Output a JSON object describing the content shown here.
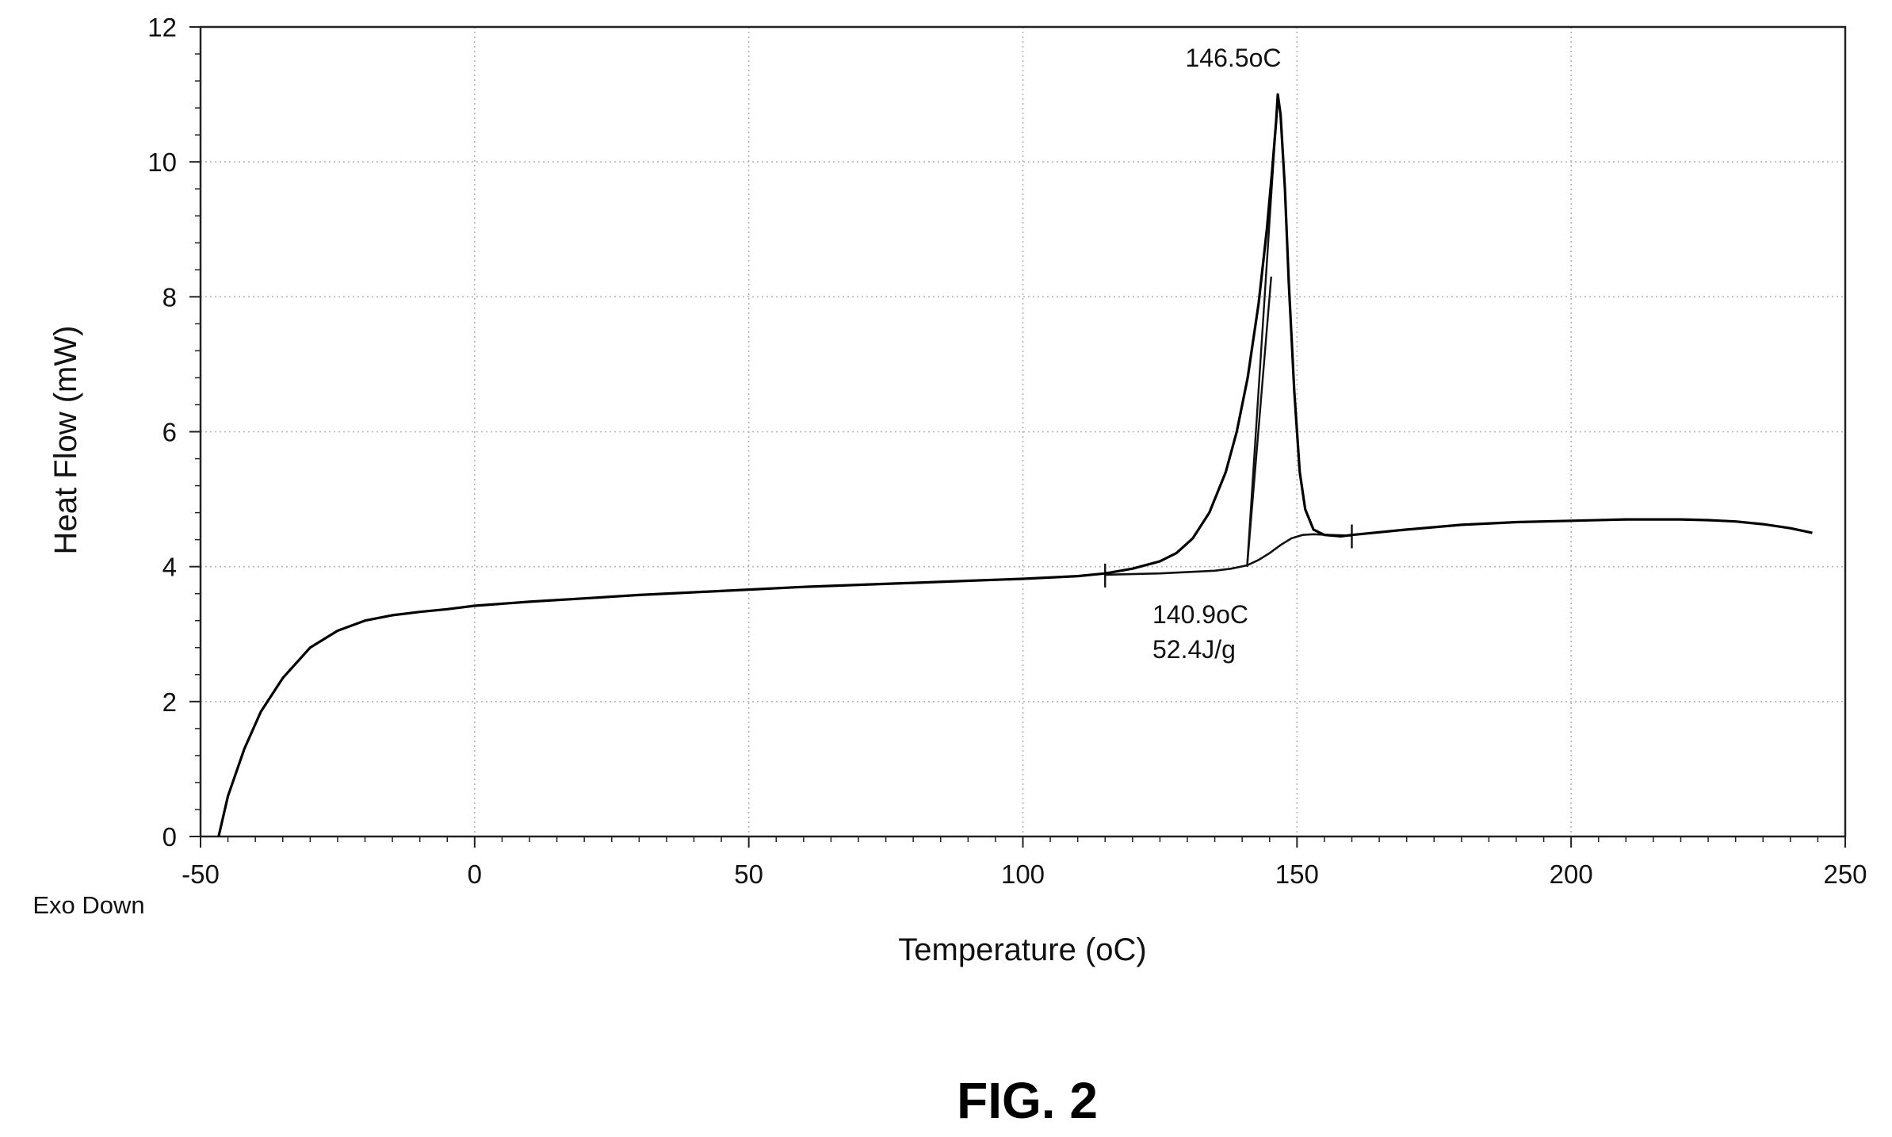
{
  "chart_data": {
    "type": "line",
    "title": "",
    "xlabel": "Temperature (oC)",
    "ylabel": "Heat Flow (mW)",
    "xlim": [
      -50,
      250
    ],
    "ylim": [
      0,
      12
    ],
    "x_ticks": [
      "-50",
      "0",
      "50",
      "100",
      "150",
      "200",
      "250"
    ],
    "y_ticks": [
      "0",
      "2",
      "4",
      "6",
      "8",
      "10",
      "12"
    ],
    "grid": true,
    "legend": "none",
    "corner_label": "Exo Down",
    "figure_label": "FIG. 2",
    "series": [
      {
        "x": [
          -46.7,
          -45,
          -42,
          -39,
          -35,
          -30,
          -25,
          -20,
          -15,
          -10,
          -5,
          0,
          10,
          20,
          30,
          40,
          50,
          60,
          70,
          80,
          90,
          100,
          110,
          115,
          120,
          125,
          128,
          131,
          134,
          137,
          139,
          141,
          143,
          144.5,
          145.5,
          146.2,
          146.5,
          147,
          147.8,
          148.5,
          149.5,
          150.5,
          151.5,
          153,
          155,
          158,
          160,
          170,
          180,
          190,
          200,
          210,
          220,
          225,
          230,
          235,
          240,
          244
        ],
        "y": [
          0,
          0.6,
          1.3,
          1.85,
          2.35,
          2.8,
          3.05,
          3.2,
          3.28,
          3.33,
          3.37,
          3.42,
          3.48,
          3.53,
          3.58,
          3.62,
          3.66,
          3.7,
          3.73,
          3.76,
          3.79,
          3.82,
          3.86,
          3.9,
          3.97,
          4.08,
          4.2,
          4.42,
          4.8,
          5.4,
          6.0,
          6.8,
          7.9,
          9.0,
          9.9,
          10.6,
          11.0,
          10.7,
          9.6,
          8.2,
          6.6,
          5.4,
          4.85,
          4.55,
          4.47,
          4.45,
          4.47,
          4.55,
          4.62,
          4.66,
          4.68,
          4.7,
          4.7,
          4.69,
          4.67,
          4.63,
          4.57,
          4.5
        ]
      }
    ],
    "baseline": {
      "x": [
        115,
        125,
        135,
        138,
        140.9,
        143,
        145,
        147,
        149,
        151,
        153,
        156,
        160
      ],
      "y": [
        3.88,
        3.9,
        3.94,
        3.97,
        4.02,
        4.1,
        4.2,
        4.32,
        4.42,
        4.47,
        4.48,
        4.47,
        4.46
      ]
    },
    "peak_tangents": [
      {
        "x": [
          140.9,
          146.5
        ],
        "y": [
          4.0,
          11.0
        ]
      },
      {
        "x": [
          140.9,
          145.3
        ],
        "y": [
          4.0,
          8.3
        ]
      }
    ],
    "integration_limits": [
      115,
      160
    ],
    "annotations": {
      "peak_label": "146.5oC",
      "onset_label": "140.9oC",
      "enthalpy_label": "52.4J/g"
    }
  }
}
